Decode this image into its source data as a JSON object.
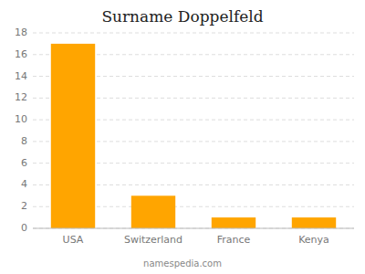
{
  "chart_data": {
    "type": "bar",
    "title": "Surname Doppelfeld",
    "categories": [
      "USA",
      "Switzerland",
      "France",
      "Kenya"
    ],
    "values": [
      17,
      3,
      1,
      1
    ],
    "color": "#FFA500",
    "ylim": [
      0,
      18
    ],
    "yticks": [
      0,
      2,
      4,
      6,
      8,
      10,
      12,
      14,
      16,
      18
    ],
    "grid": true,
    "annotations": [
      "namespedia.com"
    ]
  }
}
